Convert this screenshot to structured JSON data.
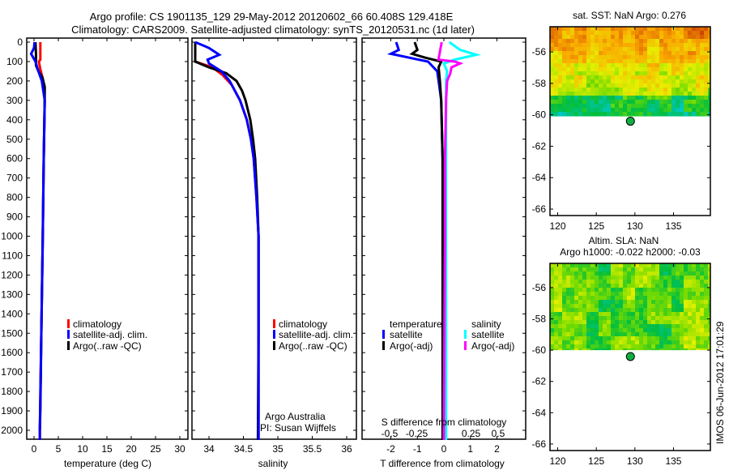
{
  "title": {
    "line1": "Argo profile: CS 1901135_129 29-May-2012 20120602_66 60.408S 129.418E",
    "line2": "Climatology: CARS2009. Satellite-adjusted climatology: synTS_20120531.nc (1d later)"
  },
  "colors": {
    "climatology": "#ff0000",
    "satellite": "#0000ff",
    "argo": "#000000",
    "sal_satellite": "#00ffff",
    "sal_argo": "#ff00ff"
  },
  "chart_data": [
    {
      "type": "line",
      "name": "temperature",
      "xlabel": "temperature (deg C)",
      "xlim": [
        -1.5,
        31.5
      ],
      "ylim": [
        2050,
        0
      ],
      "xticks": [
        0,
        5,
        10,
        15,
        20,
        25,
        30
      ],
      "yticks": [
        0,
        100,
        200,
        300,
        400,
        500,
        600,
        700,
        800,
        900,
        1000,
        1100,
        1200,
        1300,
        1400,
        1500,
        1600,
        1700,
        1800,
        1900,
        2000
      ],
      "legend": [
        "climatology",
        "satellite-adj. clim.",
        "Argo(..raw -QC)"
      ],
      "series": [
        {
          "name": "climatology",
          "color": "#ff0000",
          "depth": [
            0,
            90,
            100,
            140,
            200,
            300,
            600,
            1000,
            1500,
            2000,
            2050
          ],
          "values": [
            1.3,
            1.3,
            1.0,
            1.3,
            1.9,
            2.2,
            2.0,
            1.8,
            1.5,
            1.2,
            1.2
          ]
        },
        {
          "name": "Argo",
          "color": "#000000",
          "depth": [
            0,
            60,
            120,
            150,
            180,
            230,
            300,
            600,
            1000,
            1500,
            1700,
            1900,
            2000
          ],
          "values": [
            0.3,
            0.4,
            0.4,
            0.9,
            1.7,
            2.2,
            2.2,
            2.0,
            1.8,
            1.5,
            1.4,
            1.3,
            1.2
          ]
        },
        {
          "name": "satellite-adj. clim.",
          "color": "#0000ff",
          "depth": [
            0,
            30,
            60,
            100,
            150,
            200,
            300,
            600,
            1000,
            1500,
            2000,
            2050
          ],
          "values": [
            0.1,
            0.0,
            -0.6,
            0.3,
            0.9,
            1.6,
            2.2,
            2.0,
            1.8,
            1.5,
            1.2,
            1.2
          ]
        }
      ]
    },
    {
      "type": "line",
      "name": "salinity",
      "xlabel": "salinity",
      "xlim": [
        33.75,
        36.15
      ],
      "ylim": [
        2050,
        0
      ],
      "xticks": [
        34,
        34.5,
        35,
        35.5,
        36
      ],
      "annotation": [
        "Argo Australia",
        "PI: Susan Wijffels"
      ],
      "legend": [
        "climatology",
        "satellite-adj. clim.",
        "Argo(..raw -QC)"
      ],
      "series": [
        {
          "name": "climatology",
          "color": "#ff0000",
          "depth": [
            0,
            100,
            130,
            170,
            220,
            300,
            400,
            500,
            600,
            800,
            1000,
            1500,
            2050
          ],
          "values": [
            33.8,
            33.8,
            34.05,
            34.2,
            34.33,
            34.45,
            34.55,
            34.61,
            34.65,
            34.69,
            34.72,
            34.72,
            34.72
          ]
        },
        {
          "name": "Argo",
          "color": "#000000",
          "depth": [
            0,
            100,
            130,
            160,
            200,
            250,
            300,
            400,
            500,
            600,
            800,
            1000,
            1500,
            2050
          ],
          "values": [
            33.8,
            33.8,
            34.0,
            34.25,
            34.4,
            34.48,
            34.53,
            34.6,
            34.64,
            34.67,
            34.7,
            34.72,
            34.72,
            34.71
          ]
        },
        {
          "name": "satellite-adj. clim.",
          "color": "#0000ff",
          "depth": [
            0,
            30,
            65,
            90,
            110,
            150,
            200,
            300,
            400,
            500,
            600,
            800,
            1000,
            1500,
            2050
          ],
          "values": [
            33.8,
            34.0,
            34.15,
            33.98,
            34.0,
            34.18,
            34.3,
            34.45,
            34.55,
            34.61,
            34.65,
            34.69,
            34.72,
            34.72,
            34.72
          ]
        }
      ]
    },
    {
      "type": "line",
      "name": "difference",
      "xlabel": "T difference from climatology",
      "xlabel2": "S difference from climatology",
      "xlim_T": [
        -3.0,
        3.1
      ],
      "xticks_T": [
        -2,
        -1,
        0,
        1,
        2
      ],
      "xlim_S": [
        -0.75,
        0.77
      ],
      "xticks_S": [
        -0.5,
        -0.25,
        0,
        0.25,
        0.5
      ],
      "ylim": [
        2050,
        0
      ],
      "legend_temperature": {
        "title": "temperature",
        "items": [
          "satellite",
          "Argo(-adj)"
        ]
      },
      "legend_salinity": {
        "title": "salinity",
        "items": [
          "satellite",
          "Argo(-adj)"
        ]
      },
      "series": [
        {
          "name": "temperature satellite",
          "axis": "T",
          "color": "#0000ff",
          "depth": [
            0,
            40,
            60,
            80,
            100,
            150,
            200,
            300,
            600,
            1000,
            2000,
            2050
          ],
          "values": [
            -1.8,
            -1.7,
            -2.0,
            -1.3,
            -0.6,
            -0.25,
            -0.2,
            -0.1,
            -0.05,
            -0.03,
            0,
            0
          ]
        },
        {
          "name": "temperature Argo(-adj)",
          "axis": "T",
          "color": "#000000",
          "depth": [
            0,
            40,
            60,
            80,
            100,
            130,
            200,
            300,
            600,
            1000,
            1500,
            2000,
            2050
          ],
          "values": [
            -1.1,
            -1.0,
            -1.2,
            -0.7,
            -0.1,
            -0.2,
            -0.15,
            -0.1,
            -0.05,
            -0.05,
            -0.05,
            -0.05,
            -0.05
          ]
        },
        {
          "name": "salinity satellite",
          "axis": "S",
          "color": "#00ffff",
          "depth": [
            0,
            40,
            65,
            90,
            110,
            150,
            200,
            300,
            600,
            1000,
            2000,
            2050
          ],
          "values": [
            0.05,
            0.15,
            0.3,
            0.1,
            0.0,
            0.03,
            0.02,
            0.02,
            0.02,
            0.02,
            0.02,
            0.02
          ]
        },
        {
          "name": "salinity Argo(-adj)",
          "axis": "S",
          "color": "#ff00ff",
          "depth": [
            0,
            90,
            100,
            110,
            130,
            160,
            200,
            300,
            600,
            1000,
            2000,
            2050
          ],
          "values": [
            -0.02,
            -0.05,
            0.1,
            0.15,
            0.07,
            0.06,
            0.03,
            0.02,
            0.01,
            0.01,
            0.0,
            0.0
          ]
        }
      ]
    },
    {
      "type": "heatmap",
      "name": "sst-map",
      "title": "sat. SST: NaN Argo: 0.276",
      "xlim": [
        119,
        139.8
      ],
      "ylim": [
        -66.3,
        -54.4
      ],
      "xticks": [
        120,
        125,
        130,
        135
      ],
      "yticks": [
        -56,
        -58,
        -60,
        -62,
        -64,
        -66
      ],
      "data_south_limit": -60.1,
      "argo_position": {
        "lon": 129.418,
        "lat": -60.408
      }
    },
    {
      "type": "heatmap",
      "name": "sla-map",
      "title": "Altim. SLA: NaN",
      "subtitle": "Argo h1000: -0.022 h2000: -0.03",
      "xlim": [
        119,
        139.8
      ],
      "ylim": [
        -66.2,
        -54.5
      ],
      "xticks": [
        120,
        125,
        130,
        135
      ],
      "yticks": [
        -56,
        -58,
        -60,
        -62,
        -64,
        -66
      ],
      "data_south_limit": -60.0,
      "argo_position": {
        "lon": 129.418,
        "lat": -60.408
      }
    }
  ],
  "stamp": "IMOS 06-Jun-2012 17:01:29"
}
